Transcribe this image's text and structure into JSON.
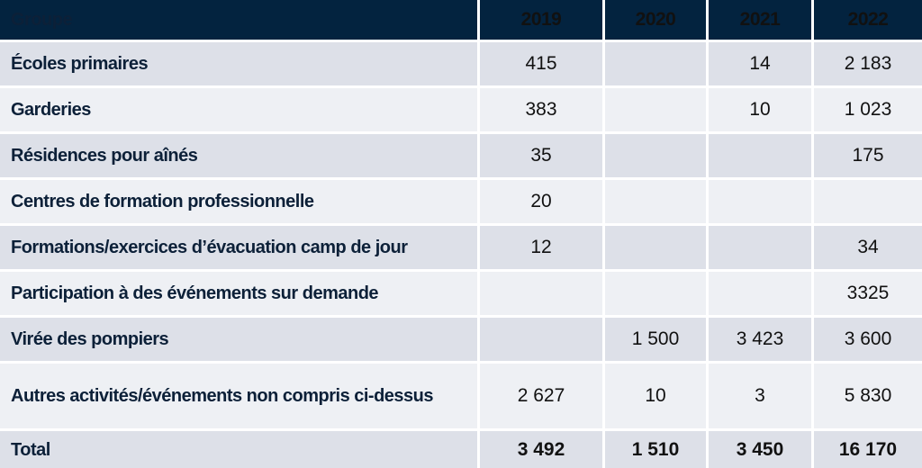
{
  "header": {
    "group": "Groupe",
    "years": [
      "2019",
      "2020",
      "2021",
      "2022"
    ]
  },
  "rows": [
    {
      "label": "Écoles primaires",
      "values": [
        "415",
        "",
        "14",
        "2 183"
      ]
    },
    {
      "label": "Garderies",
      "values": [
        "383",
        "",
        "10",
        "1 023"
      ]
    },
    {
      "label": "Résidences pour aînés",
      "values": [
        "35",
        "",
        "",
        "175"
      ]
    },
    {
      "label": "Centres de formation professionnelle",
      "values": [
        "20",
        "",
        "",
        ""
      ]
    },
    {
      "label": "Formations/exercices d’évacuation camp de jour",
      "values": [
        "12",
        "",
        "",
        "34"
      ]
    },
    {
      "label": "Participation à des événements sur demande",
      "values": [
        "",
        "",
        "",
        "3325"
      ]
    },
    {
      "label": "Virée des pompiers",
      "values": [
        "",
        "1 500",
        "3 423",
        "3 600"
      ]
    },
    {
      "label": "Autres activités/événements non compris ci-dessus",
      "values": [
        "2 627",
        "10",
        "3",
        "5 830"
      ]
    }
  ],
  "total": {
    "label": "Total",
    "values": [
      "3 492",
      "1 510",
      "3 450",
      "16 170"
    ]
  },
  "colors": {
    "header_bg": "#03233f",
    "header_text": "#f5c242",
    "row_dark": "#dde0e8",
    "row_light": "#eef0f4"
  }
}
